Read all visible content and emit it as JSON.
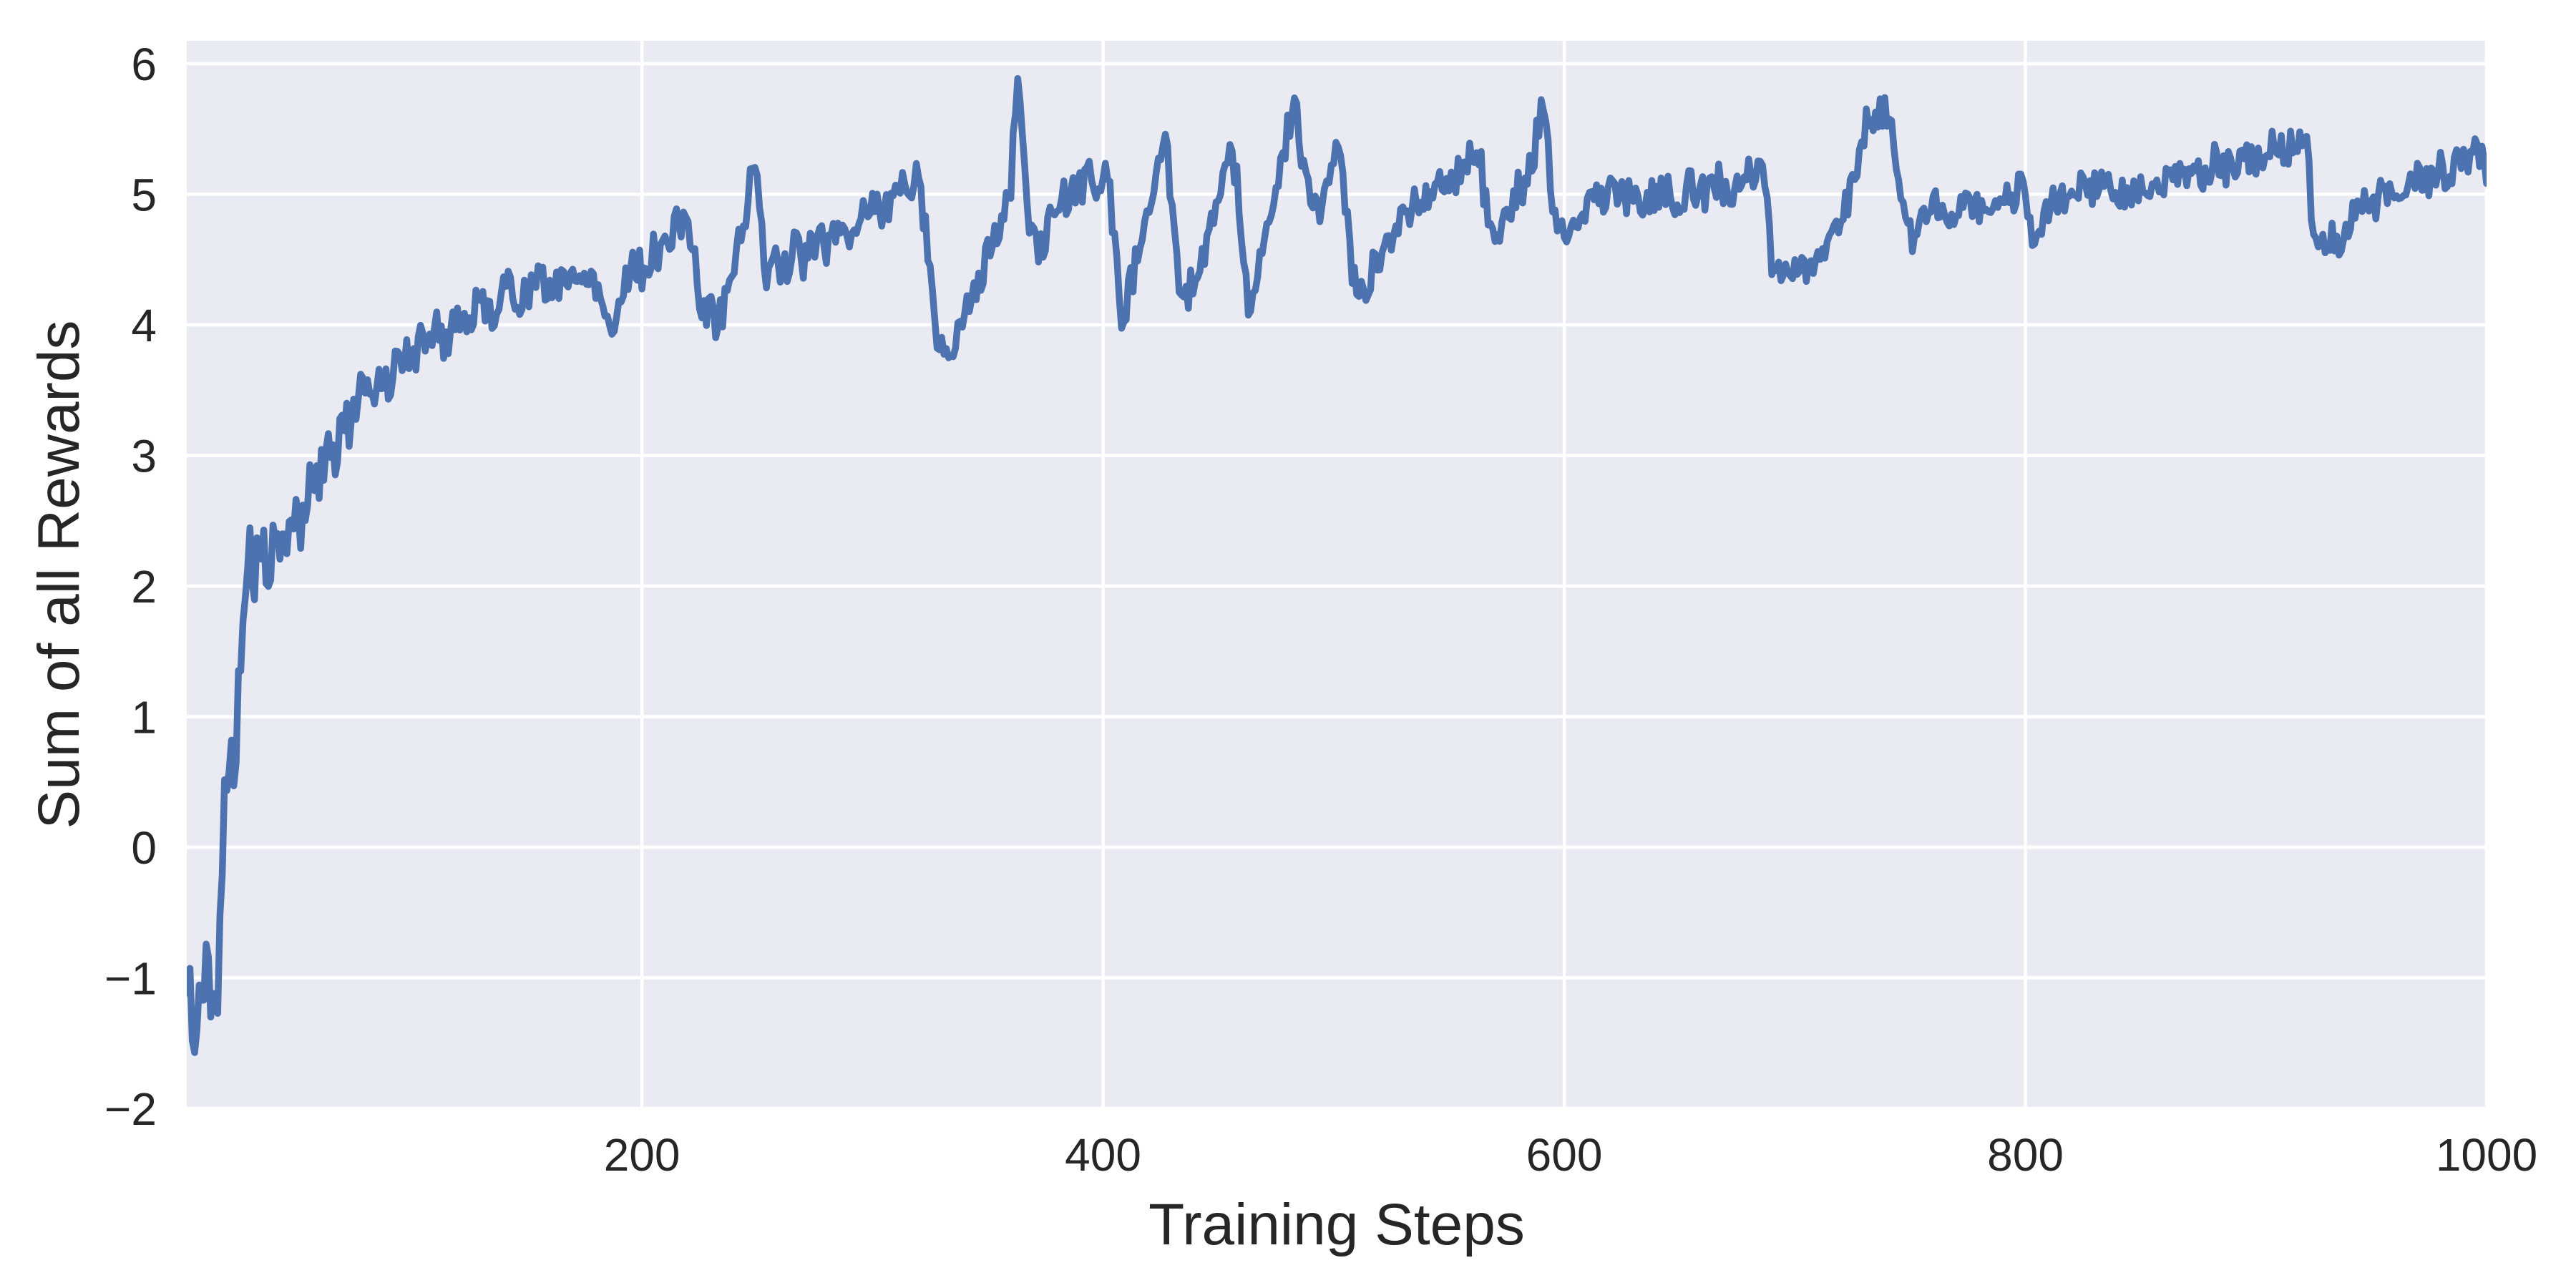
{
  "chart_data": {
    "type": "line",
    "title": "",
    "xlabel": "Training Steps",
    "ylabel": "Sum of all Rewards",
    "xlim": [
      2.6,
      1000
    ],
    "ylim": [
      -2.0,
      6.175
    ],
    "xticks": [
      200,
      400,
      600,
      800,
      1000
    ],
    "xticklabels": [
      "200",
      "400",
      "600",
      "800",
      "1000"
    ],
    "yticks": [
      6,
      5,
      4,
      3,
      2,
      1,
      0,
      -1,
      -2
    ],
    "yticklabels": [
      "6",
      "5",
      "4",
      "3",
      "2",
      "1",
      "0",
      "−1",
      "−2"
    ],
    "grid": true,
    "legend": false,
    "style": "seaborn-darkgrid",
    "colors": {
      "line": "#4c72b0",
      "plot_background": "#eaeaf2",
      "grid": "#ffffff",
      "tick_label": "#262626",
      "axis_label": "#262626",
      "figure_background": "#ffffff"
    },
    "series": [
      {
        "name": "Sum of all Rewards",
        "x_start": 3,
        "x_end": 1000,
        "x_step": 1,
        "noise_seed": 5,
        "noise_amp_points": [
          [
            3,
            0.22
          ],
          [
            16,
            0.28
          ],
          [
            30,
            0.25
          ],
          [
            60,
            0.18
          ],
          [
            120,
            0.15
          ],
          [
            680,
            0.15
          ],
          [
            692,
            0.09
          ],
          [
            714,
            0.11
          ],
          [
            728,
            0.13
          ],
          [
            1000,
            0.15
          ]
        ],
        "trend_points": [
          [
            3,
            -1.2
          ],
          [
            4,
            -1.05
          ],
          [
            5,
            -1.35
          ],
          [
            6,
            -1.63
          ],
          [
            7,
            -1.2
          ],
          [
            8,
            -1.1
          ],
          [
            9,
            -1.28
          ],
          [
            10,
            -1.15
          ],
          [
            11,
            -0.95
          ],
          [
            12,
            -0.7
          ],
          [
            13,
            -1.45
          ],
          [
            14,
            -1.25
          ],
          [
            15,
            -1.3
          ],
          [
            16,
            -1.0
          ],
          [
            17,
            -0.5
          ],
          [
            18,
            -0.1
          ],
          [
            19,
            0.3
          ],
          [
            20,
            0.55
          ],
          [
            21,
            0.45
          ],
          [
            22,
            0.7
          ],
          [
            23,
            0.6
          ],
          [
            24,
            0.9
          ],
          [
            25,
            1.2
          ],
          [
            26,
            1.5
          ],
          [
            27,
            1.85
          ],
          [
            28,
            2.1
          ],
          [
            30,
            2.2
          ],
          [
            32,
            2.1
          ],
          [
            34,
            2.3
          ],
          [
            36,
            2.2
          ],
          [
            38,
            2.05
          ],
          [
            40,
            2.3
          ],
          [
            43,
            2.2
          ],
          [
            46,
            2.4
          ],
          [
            50,
            2.55
          ],
          [
            53,
            2.45
          ],
          [
            57,
            2.9
          ],
          [
            60,
            2.75
          ],
          [
            63,
            3.1
          ],
          [
            67,
            3.0
          ],
          [
            70,
            3.3
          ],
          [
            74,
            3.2
          ],
          [
            78,
            3.5
          ],
          [
            82,
            3.4
          ],
          [
            86,
            3.65
          ],
          [
            90,
            3.55
          ],
          [
            95,
            3.8
          ],
          [
            100,
            3.7
          ],
          [
            105,
            3.9
          ],
          [
            110,
            4.0
          ],
          [
            115,
            3.85
          ],
          [
            120,
            4.1
          ],
          [
            125,
            4.0
          ],
          [
            130,
            4.2
          ],
          [
            136,
            4.1
          ],
          [
            142,
            4.3
          ],
          [
            148,
            4.2
          ],
          [
            154,
            4.35
          ],
          [
            160,
            4.25
          ],
          [
            166,
            4.4
          ],
          [
            172,
            4.3
          ],
          [
            178,
            4.45
          ],
          [
            184,
            4.1
          ],
          [
            188,
            3.97
          ],
          [
            192,
            4.3
          ],
          [
            196,
            4.5
          ],
          [
            200,
            4.4
          ],
          [
            205,
            4.55
          ],
          [
            210,
            4.6
          ],
          [
            215,
            4.75
          ],
          [
            220,
            4.85
          ],
          [
            224,
            4.3
          ],
          [
            227,
            4.05
          ],
          [
            230,
            4.15
          ],
          [
            233,
            4.0
          ],
          [
            236,
            4.2
          ],
          [
            240,
            4.45
          ],
          [
            244,
            4.8
          ],
          [
            248,
            5.2
          ],
          [
            251,
            4.9
          ],
          [
            254,
            4.4
          ],
          [
            258,
            4.55
          ],
          [
            262,
            4.4
          ],
          [
            266,
            4.6
          ],
          [
            270,
            4.5
          ],
          [
            275,
            4.65
          ],
          [
            280,
            4.6
          ],
          [
            285,
            4.75
          ],
          [
            290,
            4.7
          ],
          [
            295,
            4.85
          ],
          [
            300,
            4.95
          ],
          [
            305,
            4.85
          ],
          [
            310,
            5.0
          ],
          [
            315,
            5.1
          ],
          [
            320,
            5.15
          ],
          [
            324,
            4.6
          ],
          [
            328,
            3.9
          ],
          [
            332,
            3.78
          ],
          [
            336,
            3.85
          ],
          [
            340,
            4.05
          ],
          [
            344,
            4.3
          ],
          [
            348,
            4.45
          ],
          [
            352,
            4.6
          ],
          [
            356,
            4.8
          ],
          [
            360,
            5.1
          ],
          [
            363,
            5.8
          ],
          [
            365,
            5.45
          ],
          [
            368,
            4.75
          ],
          [
            371,
            4.55
          ],
          [
            374,
            4.65
          ],
          [
            378,
            4.8
          ],
          [
            382,
            4.95
          ],
          [
            386,
            5.0
          ],
          [
            390,
            5.05
          ],
          [
            394,
            5.15
          ],
          [
            398,
            5.05
          ],
          [
            402,
            5.2
          ],
          [
            405,
            4.6
          ],
          [
            408,
            4.05
          ],
          [
            411,
            4.25
          ],
          [
            414,
            4.45
          ],
          [
            417,
            4.7
          ],
          [
            420,
            5.0
          ],
          [
            424,
            5.3
          ],
          [
            427,
            5.45
          ],
          [
            430,
            4.8
          ],
          [
            433,
            4.25
          ],
          [
            436,
            4.15
          ],
          [
            440,
            4.4
          ],
          [
            444,
            4.6
          ],
          [
            448,
            4.85
          ],
          [
            452,
            5.1
          ],
          [
            455,
            5.3
          ],
          [
            458,
            5.2
          ],
          [
            461,
            4.35
          ],
          [
            464,
            4.05
          ],
          [
            468,
            4.5
          ],
          [
            472,
            4.8
          ],
          [
            476,
            5.1
          ],
          [
            480,
            5.5
          ],
          [
            483,
            5.65
          ],
          [
            486,
            5.35
          ],
          [
            490,
            5.0
          ],
          [
            494,
            4.8
          ],
          [
            498,
            5.1
          ],
          [
            502,
            5.3
          ],
          [
            506,
            4.75
          ],
          [
            509,
            4.3
          ],
          [
            512,
            4.2
          ],
          [
            516,
            4.4
          ],
          [
            520,
            4.55
          ],
          [
            525,
            4.7
          ],
          [
            530,
            4.85
          ],
          [
            535,
            4.95
          ],
          [
            540,
            5.0
          ],
          [
            545,
            5.1
          ],
          [
            550,
            5.05
          ],
          [
            555,
            5.2
          ],
          [
            559,
            5.3
          ],
          [
            563,
            5.35
          ],
          [
            566,
            4.9
          ],
          [
            569,
            4.6
          ],
          [
            573,
            4.8
          ],
          [
            577,
            4.95
          ],
          [
            581,
            5.05
          ],
          [
            585,
            5.15
          ],
          [
            588,
            5.45
          ],
          [
            590,
            5.72
          ],
          [
            593,
            5.3
          ],
          [
            596,
            4.8
          ],
          [
            600,
            4.62
          ],
          [
            604,
            4.8
          ],
          [
            608,
            4.9
          ],
          [
            613,
            5.0
          ],
          [
            618,
            4.95
          ],
          [
            624,
            5.05
          ],
          [
            630,
            4.95
          ],
          [
            636,
            5.0
          ],
          [
            642,
            5.05
          ],
          [
            648,
            4.95
          ],
          [
            654,
            5.05
          ],
          [
            660,
            5.0
          ],
          [
            666,
            5.1
          ],
          [
            672,
            5.0
          ],
          [
            678,
            5.15
          ],
          [
            683,
            5.2
          ],
          [
            687,
            5.1
          ],
          [
            690,
            4.45
          ],
          [
            695,
            4.42
          ],
          [
            700,
            4.45
          ],
          [
            705,
            4.4
          ],
          [
            710,
            4.48
          ],
          [
            714,
            4.6
          ],
          [
            718,
            4.75
          ],
          [
            722,
            4.9
          ],
          [
            726,
            5.1
          ],
          [
            729,
            5.3
          ],
          [
            731,
            5.55
          ],
          [
            735,
            5.6
          ],
          [
            739,
            5.62
          ],
          [
            742,
            5.55
          ],
          [
            744,
            5.15
          ],
          [
            746,
            4.95
          ],
          [
            749,
            4.82
          ],
          [
            752,
            4.6
          ],
          [
            755,
            4.78
          ],
          [
            758,
            4.9
          ],
          [
            762,
            4.95
          ],
          [
            768,
            4.85
          ],
          [
            774,
            5.0
          ],
          [
            780,
            4.9
          ],
          [
            786,
            5.0
          ],
          [
            792,
            4.95
          ],
          [
            798,
            5.05
          ],
          [
            804,
            4.55
          ],
          [
            808,
            4.85
          ],
          [
            812,
            5.0
          ],
          [
            816,
            4.95
          ],
          [
            822,
            5.05
          ],
          [
            828,
            5.0
          ],
          [
            834,
            5.1
          ],
          [
            840,
            5.05
          ],
          [
            846,
            5.0
          ],
          [
            852,
            5.1
          ],
          [
            858,
            5.15
          ],
          [
            864,
            5.1
          ],
          [
            870,
            5.2
          ],
          [
            876,
            5.15
          ],
          [
            882,
            5.25
          ],
          [
            888,
            5.2
          ],
          [
            894,
            5.3
          ],
          [
            900,
            5.25
          ],
          [
            906,
            5.35
          ],
          [
            912,
            5.3
          ],
          [
            916,
            5.4
          ],
          [
            920,
            5.45
          ],
          [
            922,
            5.3
          ],
          [
            925,
            4.75
          ],
          [
            929,
            4.65
          ],
          [
            933,
            4.72
          ],
          [
            937,
            4.6
          ],
          [
            941,
            4.78
          ],
          [
            944,
            4.95
          ],
          [
            948,
            5.0
          ],
          [
            952,
            4.9
          ],
          [
            956,
            5.05
          ],
          [
            960,
            4.95
          ],
          [
            964,
            5.1
          ],
          [
            968,
            5.05
          ],
          [
            972,
            5.15
          ],
          [
            976,
            5.1
          ],
          [
            980,
            5.2
          ],
          [
            984,
            5.15
          ],
          [
            988,
            5.3
          ],
          [
            992,
            5.2
          ],
          [
            996,
            5.35
          ],
          [
            1000,
            5.15
          ]
        ]
      }
    ]
  }
}
